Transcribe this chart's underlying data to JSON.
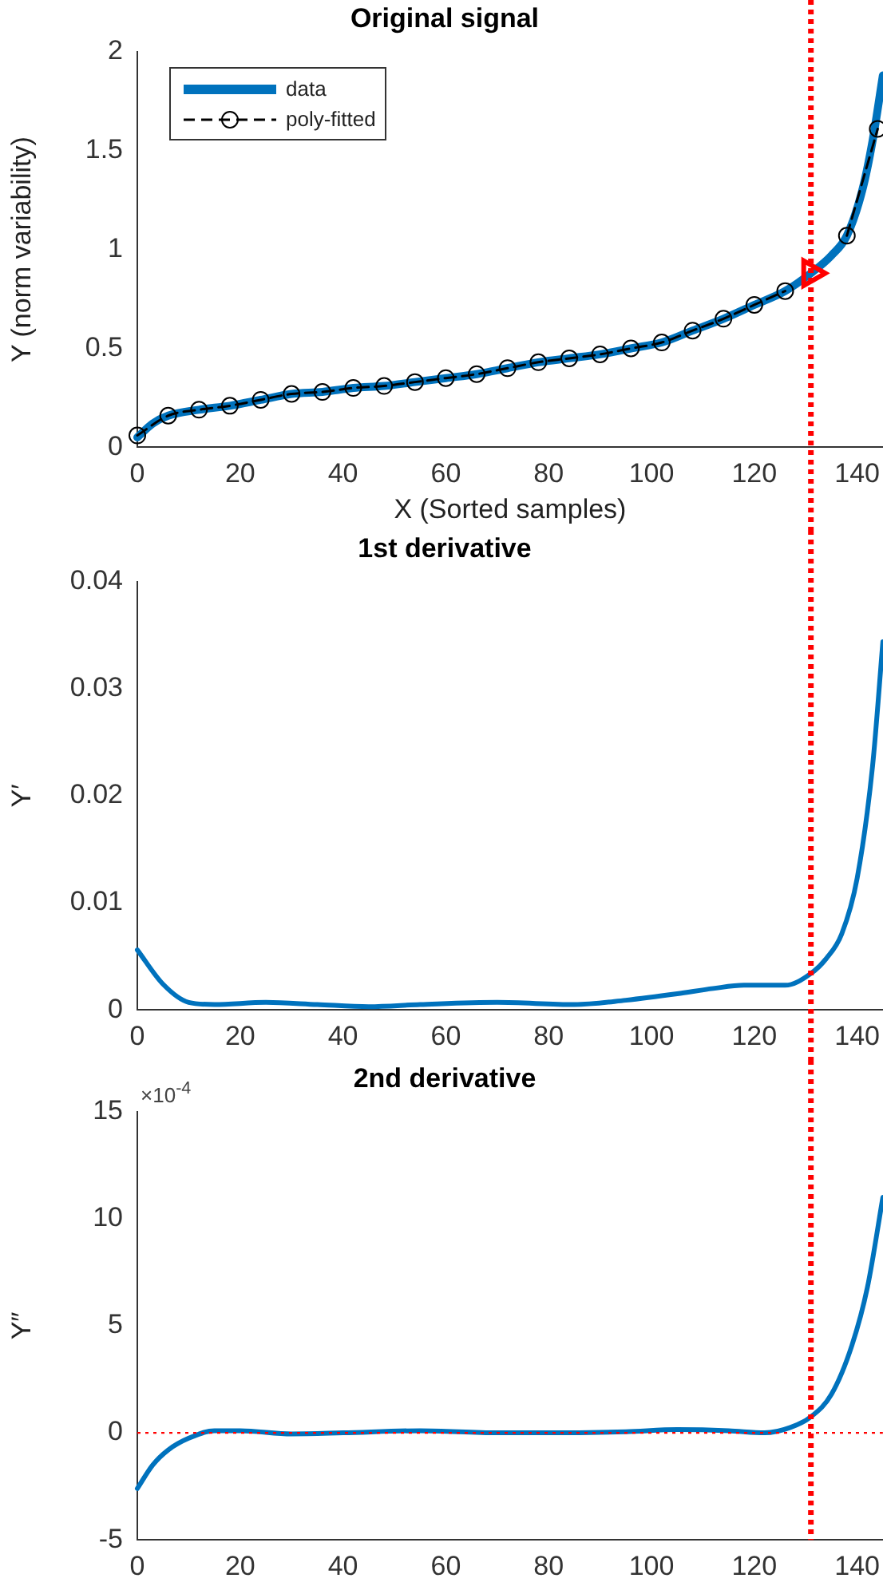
{
  "chart_data": [
    {
      "type": "line",
      "title": "Original signal",
      "xlabel": "X (Sorted samples)",
      "ylabel": "Y (norm variability)",
      "xlim": [
        0,
        145
      ],
      "xticks": [
        0,
        20,
        40,
        60,
        80,
        100,
        120,
        140
      ],
      "ylim": [
        0,
        2
      ],
      "yticks": [
        0,
        0.5,
        1,
        1.5,
        2
      ],
      "grid": false,
      "legend": "top left",
      "series": [
        {
          "name": "data",
          "color": "#0072bd",
          "line_style": "solid",
          "x": [
            0,
            3,
            6,
            12,
            18,
            24,
            30,
            36,
            42,
            48,
            54,
            60,
            66,
            72,
            78,
            84,
            90,
            96,
            102,
            108,
            114,
            120,
            126,
            131,
            135,
            138,
            141,
            143,
            145
          ],
          "values": [
            0.05,
            0.12,
            0.16,
            0.19,
            0.21,
            0.24,
            0.27,
            0.28,
            0.3,
            0.31,
            0.33,
            0.35,
            0.37,
            0.4,
            0.43,
            0.45,
            0.47,
            0.5,
            0.53,
            0.59,
            0.65,
            0.72,
            0.79,
            0.88,
            0.97,
            1.07,
            1.3,
            1.55,
            1.88
          ]
        },
        {
          "name": "poly-fitted",
          "color": "#000000",
          "marker": "circle",
          "line_style": "dashed",
          "x": [
            0,
            6,
            12,
            18,
            24,
            30,
            36,
            42,
            48,
            54,
            60,
            66,
            72,
            78,
            84,
            90,
            96,
            102,
            108,
            114,
            120,
            126,
            132,
            138,
            144
          ],
          "values": [
            0.06,
            0.16,
            0.19,
            0.21,
            0.24,
            0.27,
            0.28,
            0.3,
            0.31,
            0.33,
            0.35,
            0.37,
            0.4,
            0.43,
            0.45,
            0.47,
            0.5,
            0.53,
            0.59,
            0.65,
            0.72,
            0.79,
            null,
            1.07,
            1.61
          ]
        },
        {
          "type": "scatter",
          "color": "#ff0000",
          "marker": "triangle",
          "x": [
            131
          ],
          "values": [
            0.88
          ]
        }
      ],
      "ref_lines": [
        {
          "axis": "x",
          "value": 131,
          "color": "#ff0000",
          "line_style": "dotted"
        }
      ]
    },
    {
      "type": "line",
      "title": "1st derivative",
      "ylabel": "Y′",
      "xlim": [
        0,
        145
      ],
      "xticks": [
        0,
        20,
        40,
        60,
        80,
        100,
        120,
        140
      ],
      "ylim": [
        0,
        0.04
      ],
      "yticks": [
        0,
        0.01,
        0.02,
        0.03,
        0.04
      ],
      "grid": false,
      "legend": false,
      "series": [
        {
          "color": "#0072bd",
          "marker": "none",
          "line_style": "solid",
          "x": [
            0,
            5,
            10,
            15,
            25,
            35,
            45,
            55,
            70,
            85,
            95,
            105,
            112,
            118,
            126,
            131,
            134,
            137,
            140,
            143,
            145
          ],
          "values": [
            0.0056,
            0.0024,
            0.0007,
            0.0005,
            0.0007,
            0.0005,
            0.0003,
            0.0005,
            0.0007,
            0.0005,
            0.0009,
            0.0015,
            0.002,
            0.0023,
            0.0023,
            0.0034,
            0.0048,
            0.0071,
            0.0123,
            0.0228,
            0.0344
          ]
        }
      ],
      "ref_lines": [
        {
          "axis": "x",
          "value": 131,
          "color": "#ff0000",
          "line_style": "dotted"
        }
      ]
    },
    {
      "type": "line",
      "title": "2nd derivative",
      "ylabel": "Y″",
      "annotations": [
        "×10$^{-4}$"
      ],
      "xlim": [
        0,
        145
      ],
      "xticks": [
        0,
        20,
        40,
        60,
        80,
        100,
        120,
        140
      ],
      "ylim": [
        -5,
        15
      ],
      "yticks": [
        -5,
        0,
        5,
        10,
        15
      ],
      "grid": false,
      "legend": false,
      "series": [
        {
          "color": "#0072bd",
          "marker": "none",
          "line_style": "solid",
          "x": [
            0,
            3,
            6,
            10,
            15,
            20,
            30,
            40,
            55,
            70,
            80,
            95,
            105,
            115,
            122,
            127,
            131,
            135,
            139,
            142,
            145
          ],
          "values": [
            -2.6,
            -1.5,
            -0.8,
            -0.25,
            0.1,
            0.1,
            -0.05,
            0,
            0.1,
            0,
            0,
            0.05,
            0.15,
            0.1,
            0,
            0.25,
            0.75,
            1.8,
            4.1,
            6.8,
            11
          ]
        }
      ],
      "ref_lines": [
        {
          "axis": "x",
          "value": 131,
          "color": "#ff0000",
          "line_style": "dotted"
        },
        {
          "axis": "y",
          "value": 0,
          "color": "#ff0000",
          "line_style": "dotted"
        }
      ]
    }
  ]
}
